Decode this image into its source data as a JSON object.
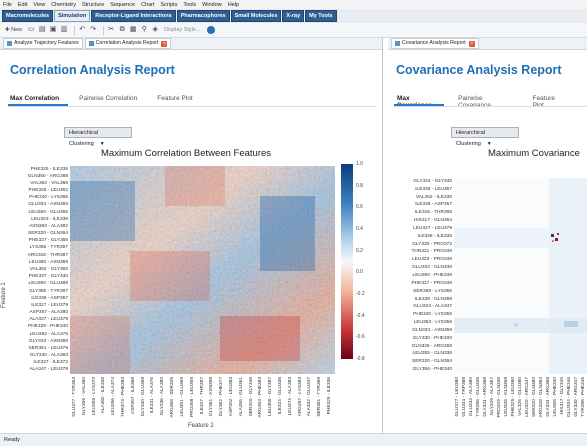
{
  "menu": [
    "File",
    "Edit",
    "View",
    "Chemistry",
    "Structure",
    "Sequence",
    "Chart",
    "Scripts",
    "Tools",
    "Window",
    "Help"
  ],
  "app_tabs": [
    {
      "label": "Macromolecules",
      "active": false
    },
    {
      "label": "Simulation",
      "active": true
    },
    {
      "label": "Receptor-Ligand Interactions",
      "active": false
    },
    {
      "label": "Pharmacophores",
      "active": false
    },
    {
      "label": "Small Molecules",
      "active": false
    },
    {
      "label": "X-ray",
      "active": false
    },
    {
      "label": "My Tools",
      "active": false
    }
  ],
  "toolbar": {
    "new_label": "New",
    "display_style": "Display Style..."
  },
  "left_pane": {
    "doc_tabs": [
      "Analyze Trajectory Features",
      "Correlation Analysis Report"
    ],
    "title": "Correlation Analysis Report",
    "subtabs": [
      "Max Correlation",
      "Pairwise Correlation",
      "Feature Plot"
    ],
    "dropdown": "Hierarchical Clustering",
    "chart_title": "Maximum Correlation Between Features",
    "xlabel": "Feature 2",
    "ylabel": "Feature 1"
  },
  "right_pane": {
    "doc_tabs": [
      "Covariance Analysis Report"
    ],
    "title": "Covariance Analysis Report",
    "subtabs": [
      "Max Covariance",
      "Pairwise Covariance",
      "Feature Plot"
    ],
    "dropdown": "Hierarchical Clustering",
    "chart_title": "Maximum Covariance"
  },
  "colors": {
    "accent": "#1f6fb5",
    "positive": "#1a4f8a",
    "negative": "#8f0d1e",
    "neutral": "#f7f7f7"
  },
  "chart_data": [
    {
      "type": "heatmap",
      "title": "Maximum Correlation Between Features",
      "xlabel": "Feature 2",
      "ylabel": "Feature 1",
      "colorbar_ticks": [
        "1.0",
        "0.8",
        "0.6",
        "0.4",
        "0.2",
        "0.0",
        "-0.2",
        "-0.4",
        "-0.6",
        "-0.8"
      ],
      "colorbar_range": [
        -0.8,
        1.0
      ],
      "row_labels": [
        "PHE325 - ILE336",
        "GLN350 - ARG368",
        "VAL362 - VAL366",
        "PHE325 - LEU362",
        "PHE340 - LYS355",
        "GLU334 - ASN369",
        "LEU360 - GLU365",
        "LEU323 - ILE336",
        "ASN363 - ALA382",
        "SER320 - GLN364",
        "PHE337 - GLY356",
        "LYS355 - TYR397",
        "ARG316 - THR387",
        "LEU360 - ASN369",
        "VAL362 - GLY365",
        "PHE337 - GLY330",
        "LEU360 - GLU386",
        "GLY356 - TYR397",
        "ILE338 - ASP357",
        "ILE327 - LEU379",
        "ASP357 - ALA380",
        "ALA327 - LEU379",
        "PHE329 - PHE340",
        "LEU362 - ALA376",
        "GLY333 - ASN369",
        "SER361 - LEU379",
        "GLY330 - ALA383",
        "ILE327 - ILE372",
        "ALA347 - LEU379"
      ],
      "col_labels": [
        "GLU377 - TYR363",
        "GLY356 - VAL360",
        "LEU359 - LYS370",
        "ALA382 - ILE336",
        "LEU356 - ALA374",
        "THR373 - PHE383",
        "ASP357 - ILE368",
        "GLY330 - GLU368",
        "ILE331 - ALA376",
        "GLY336 - ALA380",
        "ARG368 - SER326",
        "LEU351 - GLU369",
        "PRO369 - LEU359",
        "ILE327 - THR387",
        "GLY361 - ASN398",
        "GLY362 - PHE377",
        "ASP352 - LEU383",
        "ALA355 - GLU361",
        "SER320 - GLY346",
        "ARG353 - PHE383",
        "LEU355 - GLY387",
        "ILE324 - GLU336",
        "LEU374 - ALA383",
        "ARG357 - LYS383",
        "ALA332 - GLU337",
        "SER361 - TYR369",
        "PHE325 - ILE336"
      ]
    },
    {
      "type": "heatmap",
      "title": "Maximum Covariance",
      "row_labels": [
        "GLY324 - GLY345",
        "ILE335 - LEU367",
        "VAL362 - ILE336",
        "ILE338 - ASP357",
        "ILE316 - THR385",
        "HIS317 - GLN364",
        "LEU327 - LEU379",
        "ILE328 - ILE336",
        "GLY330 - PRO372",
        "THR321 - PRO346",
        "LEU323 - PRO346",
        "GLU334 - GLN336",
        "LEU360 - PHE346",
        "PHE317 - PRO346",
        "SER389 - LYS355",
        "ILE338 - GLN358",
        "GLU324 - ALA347",
        "PHE340 - LYS355",
        "LEU353 - LYS356",
        "GLN334 - ASN369",
        "GLY330 - PHE400",
        "GLN326 - ARG368",
        "LEU355 - GLN336",
        "SER320 - GLN364",
        "GLY356 - PHE340"
      ],
      "col_labels": [
        "GLU377 - LEU380",
        "GLU344 - TRP388",
        "GLU334 - ALA380",
        "TYR396 - GLU336",
        "GLY334 - ARG368",
        "GLY329 - ALA367",
        "PRO329 - GLN336",
        "LEU326 - GLN368",
        "PHE325 - LEU380",
        "VAL326 - GLU380",
        "LEU320 - ARG347",
        "SER320 - GLN380",
        "ARG328 - GLN384",
        "GLY334 - ARG368",
        "LEU355 - PHE340",
        "HIS317 - GLY345",
        "GLU334 - PHE346",
        "GLY330 - ARG347",
        "TYR396 - PHE346"
      ]
    }
  ],
  "status": "Ready"
}
